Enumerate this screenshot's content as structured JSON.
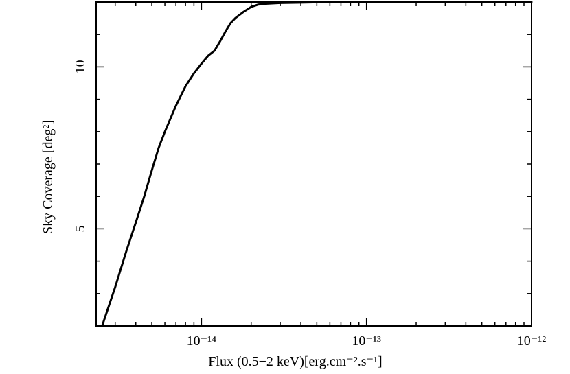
{
  "chart_data": {
    "type": "line",
    "title": "",
    "xlabel": "Flux (0.5−2 keV)[erg.cm⁻².s⁻¹]",
    "ylabel": "Sky Coverage [deg²]",
    "xscale": "log",
    "xlim": [
      2.3e-15,
      1e-12
    ],
    "ylim": [
      2.0,
      12.0
    ],
    "grid": false,
    "legend": "none",
    "x_ticks": [
      {
        "value": 1e-14,
        "label": "10⁻¹⁴"
      },
      {
        "value": 1e-13,
        "label": "10⁻¹³"
      },
      {
        "value": 1e-12,
        "label": "10⁻¹²"
      }
    ],
    "y_ticks": [
      {
        "value": 5,
        "label": "5"
      },
      {
        "value": 10,
        "label": "10"
      }
    ],
    "series": [
      {
        "color": "#000000",
        "x": [
          2.5e-15,
          3e-15,
          3.5e-15,
          4e-15,
          4.5e-15,
          5e-15,
          5.5e-15,
          6e-15,
          7e-15,
          8e-15,
          9e-15,
          1e-14,
          1.1e-14,
          1.2e-14,
          1.3e-14,
          1.4e-14,
          1.5e-14,
          1.6e-14,
          1.8e-14,
          2e-14,
          2.2e-14,
          2.5e-14,
          3e-14,
          4e-14,
          6e-14,
          1e-13,
          2e-13,
          5e-13,
          1e-12
        ],
        "y": [
          2.0,
          3.2,
          4.3,
          5.2,
          6.0,
          6.8,
          7.5,
          8.0,
          8.8,
          9.4,
          9.8,
          10.1,
          10.35,
          10.5,
          10.8,
          11.1,
          11.35,
          11.5,
          11.7,
          11.85,
          11.92,
          11.95,
          11.97,
          11.98,
          12.0,
          12.0,
          12.0,
          12.0,
          12.0
        ]
      }
    ]
  }
}
